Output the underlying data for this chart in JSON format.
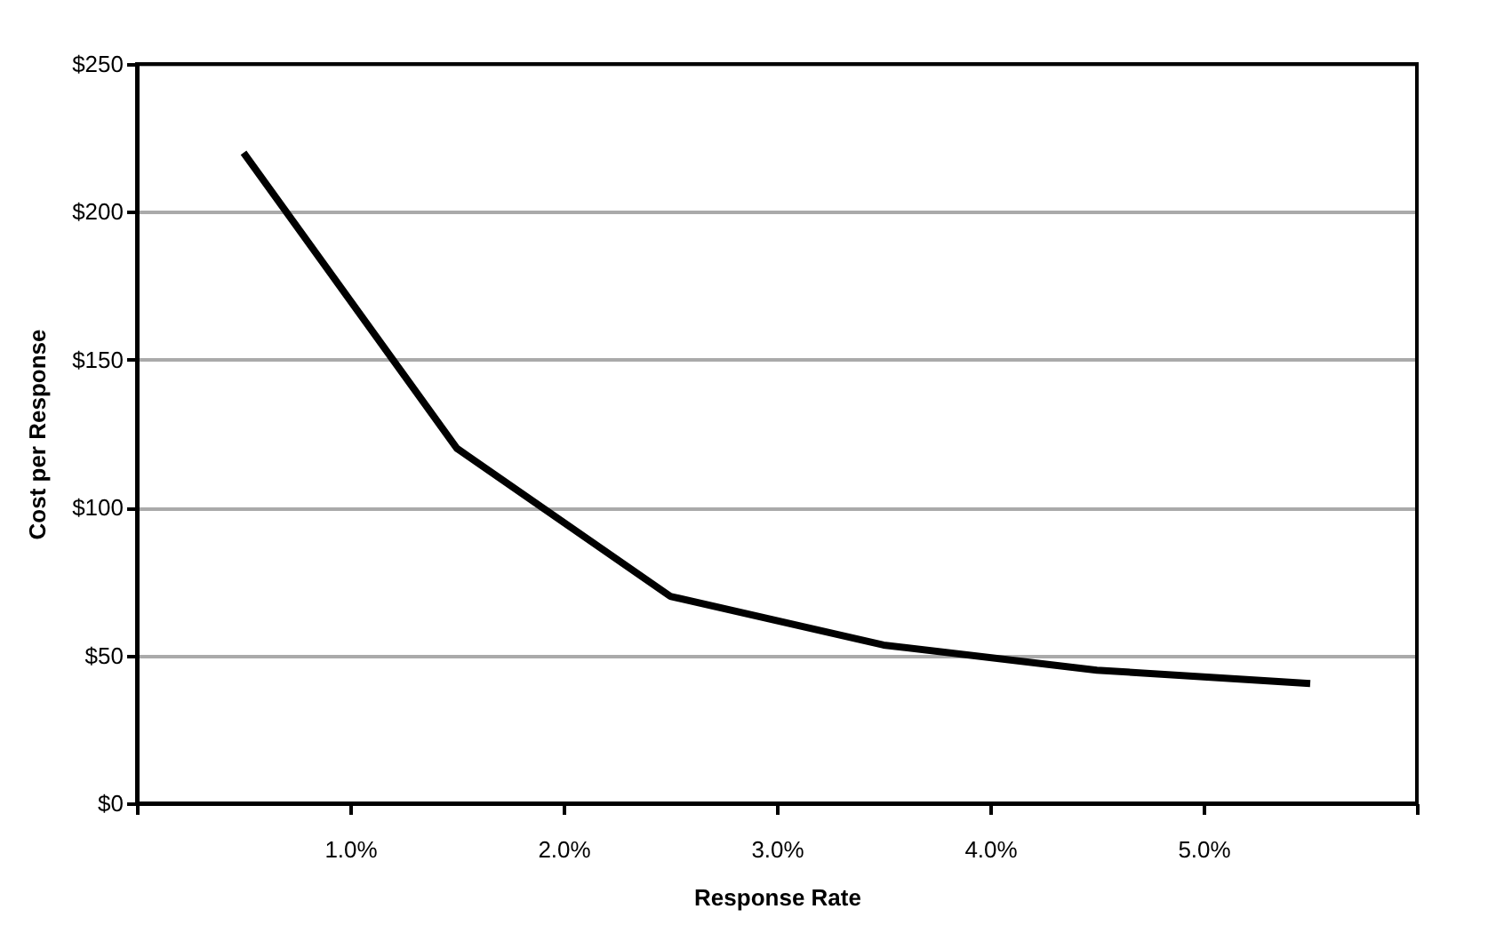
{
  "chart_data": {
    "type": "line",
    "xlabel": "Response Rate",
    "ylabel": "Cost per Response",
    "x": [
      0.5,
      1.5,
      2.5,
      3.5,
      4.5,
      5.5
    ],
    "series": [
      {
        "color": "#000000",
        "values": [
          220,
          120,
          70,
          53.5,
          45,
          40.5
        ]
      }
    ],
    "xlim": [
      0,
      6
    ],
    "xticks": [
      {
        "value": 0,
        "label": null
      },
      {
        "value": 1,
        "label": "1.0%"
      },
      {
        "value": 2,
        "label": "2.0%"
      },
      {
        "value": 3,
        "label": "3.0%"
      },
      {
        "value": 4,
        "label": "4.0%"
      },
      {
        "value": 5,
        "label": "5.0%"
      },
      {
        "value": 6,
        "label": null
      }
    ],
    "ylim": [
      0,
      250
    ],
    "yticks": [
      {
        "value": 0,
        "label": "$0"
      },
      {
        "value": 50,
        "label": "$50"
      },
      {
        "value": 100,
        "label": "$100"
      },
      {
        "value": 150,
        "label": "$150"
      },
      {
        "value": 200,
        "label": "$200"
      },
      {
        "value": 250,
        "label": "$250"
      }
    ],
    "grid": "y",
    "marker": "none",
    "line_style": "solid"
  }
}
